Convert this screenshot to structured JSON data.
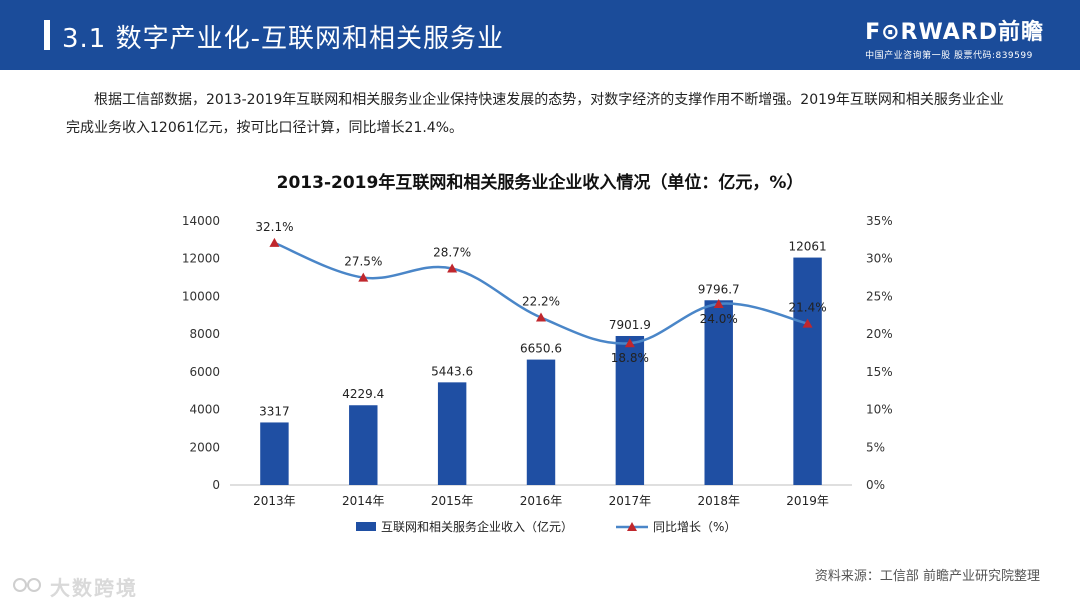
{
  "header": {
    "title": "3.1 数字产业化-互联网和相关服务业",
    "brand_logo": "F⊙RWARD前瞻",
    "brand_sub": "中国产业咨询第一股  股票代码:839599"
  },
  "intro": "根据工信部数据，2013-2019年互联网和相关服务业企业保持快速发展的态势，对数字经济的支撑作用不断增强。2019年互联网和相关服务业企业完成业务收入12061亿元，按可比口径计算，同比增长21.4%。",
  "chart_data": {
    "type": "bar",
    "title": "2013-2019年互联网和相关服务业企业收入情况（单位：亿元，%）",
    "categories": [
      "2013年",
      "2014年",
      "2015年",
      "2016年",
      "2017年",
      "2018年",
      "2019年"
    ],
    "series": [
      {
        "name": "互联网和相关服务企业收入（亿元）",
        "type": "bar",
        "axis": "left",
        "color": "#1f4fa3",
        "values": [
          3317,
          4229.4,
          5443.6,
          6650.6,
          7901.9,
          9796.7,
          12061
        ],
        "labels": [
          "3317",
          "4229.4",
          "5443.6",
          "6650.6",
          "7901.9",
          "9796.7",
          "12061"
        ]
      },
      {
        "name": "同比增长（%）",
        "type": "line",
        "axis": "right",
        "color": "#4a86c8",
        "marker_color": "#c0272d",
        "values": [
          32.1,
          27.5,
          28.7,
          22.2,
          18.8,
          24.0,
          21.4
        ],
        "labels": [
          "32.1%",
          "27.5%",
          "28.7%",
          "22.2%",
          "18.8%",
          "24.0%",
          "21.4%"
        ]
      }
    ],
    "ylim_left": [
      0,
      14000
    ],
    "yticks_left": [
      "0",
      "2000",
      "4000",
      "6000",
      "8000",
      "10000",
      "12000",
      "14000"
    ],
    "ylim_right": [
      0,
      35
    ],
    "yticks_right": [
      "0%",
      "5%",
      "10%",
      "15%",
      "20%",
      "25%",
      "30%",
      "35%"
    ],
    "legend_position": "bottom",
    "grid": false
  },
  "source": "资料来源：工信部 前瞻产业研究院整理",
  "watermark": "大数跨境"
}
